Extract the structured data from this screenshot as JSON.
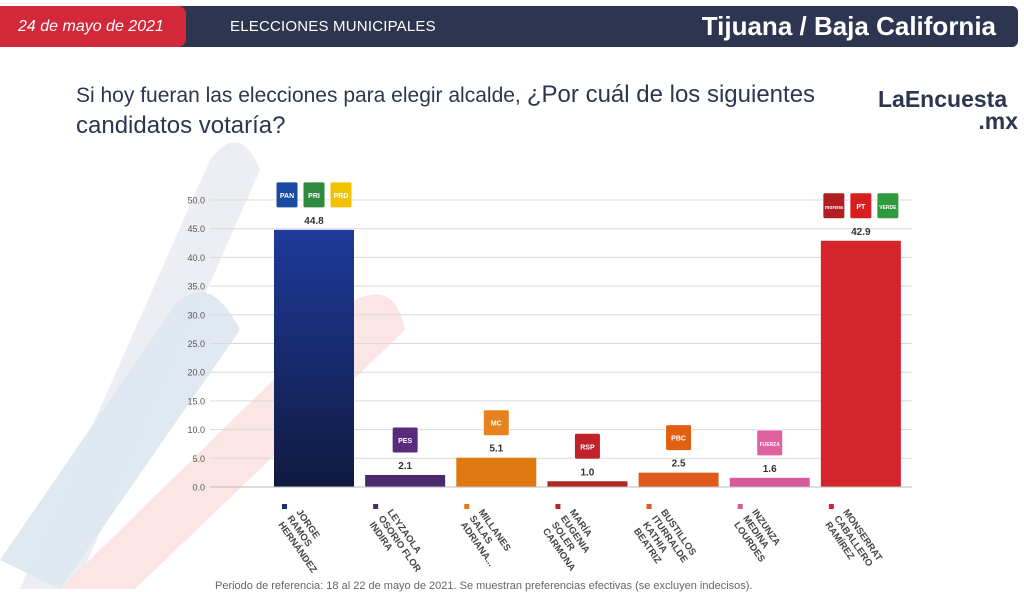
{
  "header": {
    "date": "24 de mayo de 2021",
    "section": "ELECCIONES MUNICIPALES",
    "location": "Tijuana / Baja California"
  },
  "question": {
    "part1": "Si hoy fueran las elecciones para elegir alcalde,",
    "part2": "¿Por cuál de los siguientes candidatos votaría?"
  },
  "logo": {
    "line1": "LaEncuesta",
    "line2": ".mx"
  },
  "footer": "Periodo de referencia: 18 al 22 de mayo de 2021. Se muestran preferencias efectivas (se excluyen indecisos).",
  "chart_data": {
    "type": "bar",
    "ylim": [
      0,
      50
    ],
    "yticks": [
      "0.0",
      "5.0",
      "10.0",
      "15.0",
      "20.0",
      "25.0",
      "30.0",
      "35.0",
      "40.0",
      "45.0",
      "50.0"
    ],
    "categories": [
      [
        "JORGE",
        "RAMOS",
        "HERNÁNDEZ"
      ],
      [
        "LEYZAOLA",
        "OSORIO FLOR",
        "INDIRA"
      ],
      [
        "MILLANES",
        "SALAS",
        "ADRIANA..."
      ],
      [
        "MARÍA",
        "EUGENIA",
        "SOLER",
        "CARMONA"
      ],
      [
        "BUSTILLOS",
        "ITURRALDE",
        "KATHIA",
        "BEATRIZ"
      ],
      [
        "INZUNZA",
        "MEDINA",
        "LOURDES"
      ],
      [
        "MONSERRAT",
        "CABALLERO",
        "RAMÍREZ"
      ]
    ],
    "values": [
      44.8,
      2.1,
      5.1,
      1.0,
      2.5,
      1.6,
      42.9
    ],
    "value_labels": [
      "44.8",
      "2.1",
      "5.1",
      "1.0",
      "2.5",
      "1.6",
      "42.9"
    ],
    "colors": [
      "#1a2e7a",
      "#4a2a6a",
      "#e07a10",
      "#b0281f",
      "#e05a1e",
      "#d65a9a",
      "#d3252a"
    ],
    "party_logos": [
      [
        {
          "text": "PAN",
          "color": "#1a4aa0"
        },
        {
          "text": "PRI",
          "color": "#2e8a3e"
        },
        {
          "text": "PRD",
          "color": "#f2c200"
        }
      ],
      [
        {
          "text": "PES",
          "color": "#5a2a7e"
        }
      ],
      [
        {
          "text": "MC",
          "color": "#e8821e"
        }
      ],
      [
        {
          "text": "RSP",
          "color": "#c0222a"
        }
      ],
      [
        {
          "text": "PBC",
          "color": "#e06010"
        }
      ],
      [
        {
          "text": "FUERZA",
          "color": "#e060a0"
        }
      ],
      [
        {
          "text": "morena",
          "color": "#b01e24"
        },
        {
          "text": "PT",
          "color": "#d81e1e"
        },
        {
          "text": "VERDE",
          "color": "#2e9a3e"
        }
      ]
    ]
  }
}
